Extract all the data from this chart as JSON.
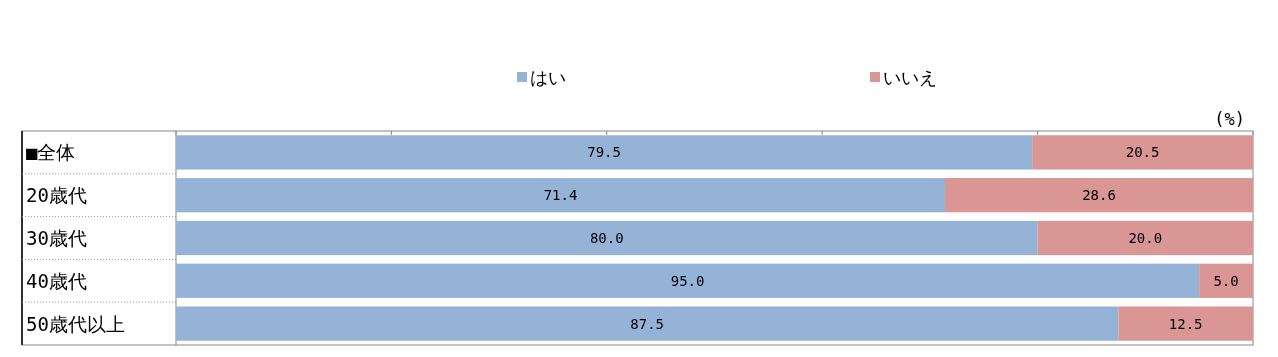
{
  "chart_data": {
    "type": "bar",
    "orientation": "horizontal",
    "stacked": true,
    "categories": [
      "■全体",
      "20歳代",
      "30歳代",
      "40歳代",
      "50歳代以上"
    ],
    "series": [
      {
        "name": "はい",
        "color": "#95b3d7",
        "values": [
          79.5,
          71.4,
          80.0,
          95.0,
          87.5
        ],
        "value_labels": [
          "79.5",
          "71.4",
          "80.0",
          "95.0",
          "87.5"
        ]
      },
      {
        "name": "いいえ",
        "color": "#d99694",
        "values": [
          20.5,
          28.6,
          20.0,
          5.0,
          12.5
        ],
        "value_labels": [
          "20.5",
          "28.6",
          "20.0",
          "5.0",
          "12.5"
        ]
      }
    ],
    "xlim": [
      0,
      100
    ],
    "xticks": [
      {
        "value": 0,
        "label": null
      },
      {
        "value": 20,
        "label": null
      },
      {
        "value": 40,
        "label": null
      },
      {
        "value": 60,
        "label": null
      },
      {
        "value": 80,
        "label": null
      },
      {
        "value": 100,
        "label": null
      }
    ],
    "grid": false,
    "legend": "top",
    "annotations": [
      "(%)"
    ]
  }
}
